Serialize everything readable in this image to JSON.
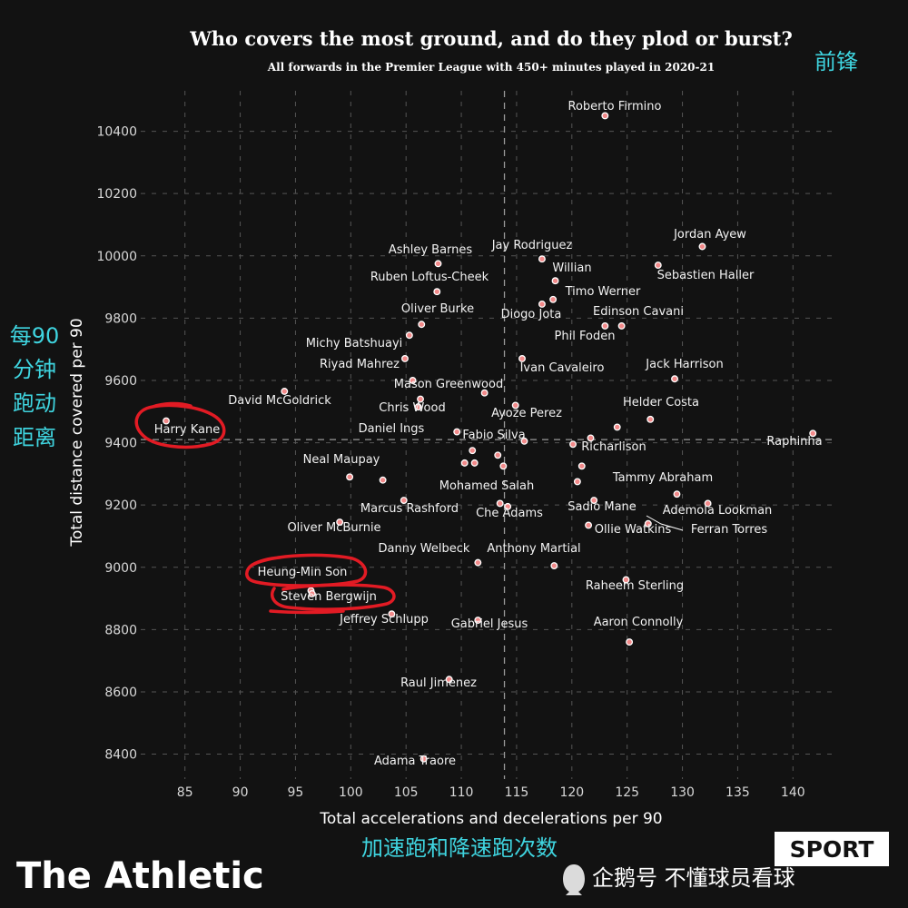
{
  "colors": {
    "background": "#121212",
    "point_fill": "#f28a8a",
    "point_stroke": "#ffffff",
    "grid": "#555555",
    "annotation_cyan": "#3fd4df",
    "circle_red": "#e21b24"
  },
  "chinese_annotations": {
    "position": "前锋",
    "y_axis": [
      "每90",
      "分钟",
      "跑动",
      "距离"
    ],
    "x_axis": "加速跑和降速跑次数"
  },
  "branding": {
    "logo": "The Athletic",
    "watermark": "企鹅号 不懂球员看球",
    "sport_badge": "SPORT"
  },
  "chart_data": {
    "type": "scatter",
    "title": "Who covers the most ground, and do they plod or burst?",
    "subtitle": "All forwards in the Premier League with 450+ minutes played in 2020-21",
    "xlabel": "Total accelerations and decelerations per 90",
    "ylabel": "Total distance covered per 90",
    "xlim": [
      81,
      144
    ],
    "ylim": [
      8320,
      10530
    ],
    "xticks": [
      85,
      90,
      95,
      100,
      105,
      110,
      115,
      120,
      125,
      130,
      135,
      140
    ],
    "yticks": [
      8400,
      8600,
      8800,
      9000,
      9200,
      9400,
      9600,
      9800,
      10000,
      10200,
      10400
    ],
    "reference_lines": {
      "x_mean": 113.9,
      "y_mean": 9410
    },
    "grid": true,
    "circled_players": [
      "Harry Kane",
      "Heung-Min Son",
      "Steven Bergwijn"
    ],
    "points": [
      {
        "name": "Roberto Firmino",
        "x": 123.0,
        "y": 10450
      },
      {
        "name": "Jordan Ayew",
        "x": 131.8,
        "y": 10030
      },
      {
        "name": "Sebastien Haller",
        "x": 127.8,
        "y": 9970
      },
      {
        "name": "Ashley Barnes",
        "x": 107.9,
        "y": 9975
      },
      {
        "name": "Jay Rodriguez",
        "x": 117.3,
        "y": 9990
      },
      {
        "name": "Willian",
        "x": 118.5,
        "y": 9920
      },
      {
        "name": "Ruben Loftus-Cheek",
        "x": 107.8,
        "y": 9885
      },
      {
        "name": "Timo Werner",
        "x": 118.3,
        "y": 9860
      },
      {
        "name": "Diogo Jota",
        "x": 117.3,
        "y": 9845
      },
      {
        "name": "Oliver Burke",
        "x": 106.4,
        "y": 9780
      },
      {
        "name": "Edinson Cavani",
        "x": 124.5,
        "y": 9775
      },
      {
        "name": "Phil Foden",
        "x": 123.0,
        "y": 9775
      },
      {
        "name": "Michy Batshuayi",
        "x": 105.3,
        "y": 9745
      },
      {
        "name": "Riyad Mahrez",
        "x": 104.9,
        "y": 9670
      },
      {
        "name": "Ivan Cavaleiro",
        "x": 115.5,
        "y": 9670
      },
      {
        "name": "Jack Harrison",
        "x": 129.3,
        "y": 9605
      },
      {
        "name": "Mason Greenwood",
        "x": 105.6,
        "y": 9600
      },
      {
        "name": "David McGoldrick",
        "x": 94.0,
        "y": 9565
      },
      {
        "name": "Chris Wood",
        "x": 106.3,
        "y": 9540
      },
      {
        "name": "Helder Costa",
        "x": 127.1,
        "y": 9475
      },
      {
        "name": "Ayoze Perez",
        "x": 114.9,
        "y": 9520
      },
      {
        "name": "Harry Kane",
        "x": 83.3,
        "y": 9470
      },
      {
        "name": "Daniel Ings",
        "x": 106.1,
        "y": 9515
      },
      {
        "name": "Fabio Silva",
        "x": 109.6,
        "y": 9435
      },
      {
        "name": "Raphinha",
        "x": 141.8,
        "y": 9430
      },
      {
        "name": "Richarlison",
        "x": 121.7,
        "y": 9415
      },
      {
        "name": "Neal Maupay",
        "x": 102.9,
        "y": 9280
      },
      {
        "name": "Tammy Abraham",
        "x": 129.5,
        "y": 9235
      },
      {
        "name": "Mohamed Salah",
        "x": 113.5,
        "y": 9205
      },
      {
        "name": "Marcus Rashford",
        "x": 99.0,
        "y": 9145
      },
      {
        "name": "Sadio Mane",
        "x": 122.0,
        "y": 9215
      },
      {
        "name": "Ademola Lookman",
        "x": 132.3,
        "y": 9205
      },
      {
        "name": "Che Adams",
        "x": 114.2,
        "y": 9195
      },
      {
        "name": "Oliver McBurnie",
        "x": 104.8,
        "y": 9215
      },
      {
        "name": "Ollie Watkins",
        "x": 121.5,
        "y": 9135
      },
      {
        "name": "Ferran Torres",
        "x": 126.9,
        "y": 9140
      },
      {
        "name": "Danny Welbeck",
        "x": 111.5,
        "y": 9015
      },
      {
        "name": "Anthony Martial",
        "x": 118.4,
        "y": 9005
      },
      {
        "name": "Heung-Min Son",
        "x": 96.4,
        "y": 8925
      },
      {
        "name": "Raheem Sterling",
        "x": 124.9,
        "y": 8960
      },
      {
        "name": "Steven Bergwijn",
        "x": 96.5,
        "y": 8915
      },
      {
        "name": "Jeffrey Schlupp",
        "x": 103.7,
        "y": 8850
      },
      {
        "name": "Gabriel Jesus",
        "x": 111.5,
        "y": 8830
      },
      {
        "name": "Aaron Connolly",
        "x": 125.2,
        "y": 8760
      },
      {
        "name": "Raul Jimenez",
        "x": 108.9,
        "y": 8640
      },
      {
        "name": "Adama Traore",
        "x": 106.6,
        "y": 8385
      }
    ],
    "unlabeled_points": [
      {
        "x": 99.9,
        "y": 9290
      },
      {
        "x": 111.0,
        "y": 9375
      },
      {
        "x": 111.2,
        "y": 9335
      },
      {
        "x": 110.3,
        "y": 9335
      },
      {
        "x": 113.3,
        "y": 9360
      },
      {
        "x": 115.7,
        "y": 9405
      },
      {
        "x": 113.8,
        "y": 9325
      },
      {
        "x": 120.5,
        "y": 9275
      },
      {
        "x": 120.9,
        "y": 9325
      },
      {
        "x": 120.1,
        "y": 9395
      },
      {
        "x": 112.1,
        "y": 9560
      },
      {
        "x": 124.1,
        "y": 9450
      }
    ]
  }
}
